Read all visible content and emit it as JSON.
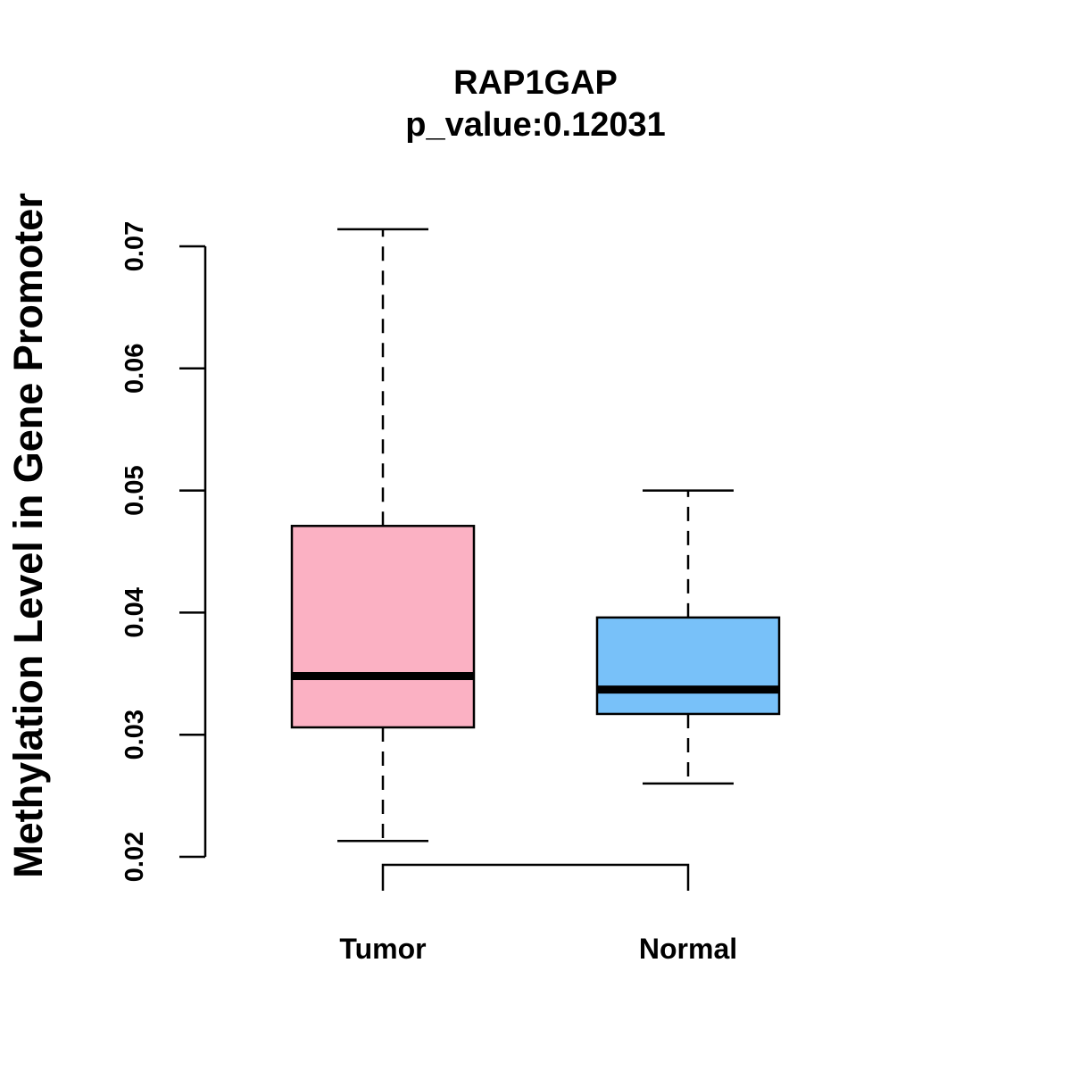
{
  "chart_data": {
    "type": "boxplot",
    "title": "RAP1GAP",
    "subtitle": "p_value:0.12031",
    "xlabel": "",
    "ylabel": "Methylation Level in Gene Promoter",
    "ylim": [
      0.02,
      0.07
    ],
    "yticks": [
      0.02,
      0.03,
      0.04,
      0.05,
      0.06,
      0.07
    ],
    "ytick_labels": [
      "0.02",
      "0.03",
      "0.04",
      "0.05",
      "0.06",
      "0.07"
    ],
    "categories": [
      "Tumor",
      "Normal"
    ],
    "boxes": [
      {
        "name": "Tumor",
        "whisker_low": 0.0213,
        "q1": 0.0306,
        "median": 0.0348,
        "q3": 0.0471,
        "whisker_high": 0.0714,
        "color": "#FBB1C3"
      },
      {
        "name": "Normal",
        "whisker_low": 0.026,
        "q1": 0.0317,
        "median": 0.0337,
        "q3": 0.0396,
        "whisker_high": 0.05,
        "color": "#78C1F9"
      }
    ],
    "grid": false,
    "comparison_bracket": [
      "Tumor",
      "Normal"
    ]
  }
}
